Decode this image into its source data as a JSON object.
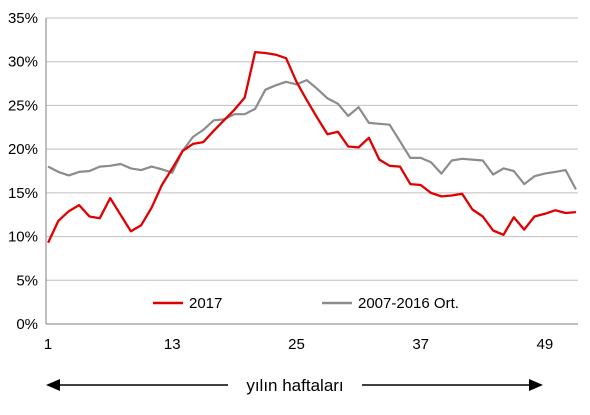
{
  "chart_data": {
    "type": "line",
    "title": "",
    "xlabel": "yılın haftaları",
    "ylabel": "",
    "xlim": [
      1,
      52
    ],
    "ylim": [
      0,
      35
    ],
    "x_ticks": [
      1,
      13,
      25,
      37,
      49
    ],
    "y_ticks": [
      0,
      5,
      10,
      15,
      20,
      25,
      30,
      35
    ],
    "y_tick_labels": [
      "0%",
      "5%",
      "10%",
      "15%",
      "20%",
      "25%",
      "30%",
      "35%"
    ],
    "grid": "horizontal",
    "legend": "bottom-inside",
    "series": [
      {
        "name": "2017",
        "color": "#e00000",
        "x": [
          1,
          2,
          3,
          4,
          5,
          6,
          7,
          8,
          9,
          10,
          11,
          12,
          13,
          14,
          15,
          16,
          17,
          18,
          19,
          20,
          21,
          22,
          23,
          24,
          25,
          26,
          27,
          28,
          29,
          30,
          31,
          32,
          33,
          34,
          35,
          36,
          37,
          38,
          39,
          40,
          41,
          42,
          43,
          44,
          45,
          46,
          47,
          48,
          49,
          50,
          51,
          52
        ],
        "values": [
          9.3,
          11.8,
          12.9,
          13.6,
          12.3,
          12.1,
          14.4,
          12.5,
          10.6,
          11.3,
          13.3,
          15.9,
          17.8,
          19.8,
          20.6,
          20.8,
          22.1,
          23.3,
          24.5,
          25.9,
          31.1,
          31.0,
          30.8,
          30.4,
          27.7,
          25.6,
          23.6,
          21.7,
          22.0,
          20.3,
          20.2,
          21.3,
          18.8,
          18.1,
          18.0,
          16.0,
          15.9,
          15.0,
          14.6,
          14.7,
          14.9,
          13.1,
          12.3,
          10.7,
          10.2,
          12.2,
          10.8,
          12.3,
          12.6,
          13.0,
          12.7,
          12.8
        ]
      },
      {
        "name": "2007-2016 Ort.",
        "color": "#8c8c8c",
        "x": [
          1,
          2,
          3,
          4,
          5,
          6,
          7,
          8,
          9,
          10,
          11,
          12,
          13,
          14,
          15,
          16,
          17,
          18,
          19,
          20,
          21,
          22,
          23,
          24,
          25,
          26,
          27,
          28,
          29,
          30,
          31,
          32,
          33,
          34,
          35,
          36,
          37,
          38,
          39,
          40,
          41,
          42,
          43,
          44,
          45,
          46,
          47,
          48,
          49,
          50,
          51,
          52
        ],
        "values": [
          18.0,
          17.4,
          17.0,
          17.4,
          17.5,
          18.0,
          18.1,
          18.3,
          17.8,
          17.6,
          18.0,
          17.7,
          17.3,
          19.8,
          21.4,
          22.2,
          23.3,
          23.4,
          24.0,
          24.0,
          24.6,
          26.8,
          27.3,
          27.7,
          27.4,
          27.9,
          26.9,
          25.8,
          25.2,
          23.8,
          24.8,
          23.0,
          22.9,
          22.8,
          20.9,
          19.0,
          19.0,
          18.5,
          17.2,
          18.7,
          18.9,
          18.8,
          18.7,
          17.1,
          17.8,
          17.5,
          16.0,
          16.9,
          17.2,
          17.4,
          17.6,
          15.4
        ]
      }
    ]
  }
}
